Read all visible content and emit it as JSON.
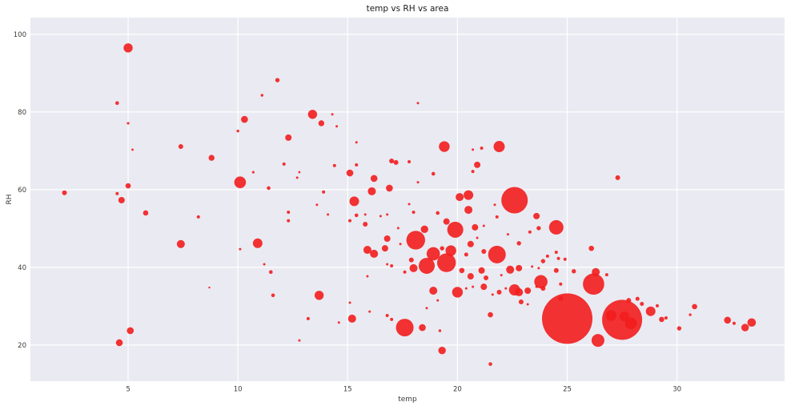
{
  "title": "temp vs RH vs area",
  "colors": {
    "figure_bg": "#ffffff",
    "plot_bg": "#eaeaf2",
    "grid": "#ffffff",
    "marker": "#f21d1d",
    "tick_label": "#3a3a3a",
    "title": "#1a1a1a"
  },
  "chart_data": {
    "type": "scatter",
    "title": "temp vs RH vs area",
    "xlabel": "temp",
    "ylabel": "RH",
    "xlim": [
      0.55,
      34.9
    ],
    "ylim": [
      10.7,
      104.3
    ],
    "x_ticks": [
      5,
      10,
      15,
      20,
      25,
      30
    ],
    "y_ticks": [
      20,
      40,
      60,
      80,
      100
    ],
    "grid": true,
    "legend": false,
    "marker_color": "#f21d1d",
    "marker_opacity": 0.9,
    "size_encodes": "area (burned area, bubble radius in px)",
    "point_format": [
      "temp",
      "RH",
      "radius_px"
    ],
    "points": [
      [
        2.1,
        59.2,
        3
      ],
      [
        4.5,
        82.3,
        2.3
      ],
      [
        4.5,
        59,
        2
      ],
      [
        4.6,
        20.6,
        4.3
      ],
      [
        4.7,
        57.3,
        4
      ],
      [
        5,
        96.5,
        5.7
      ],
      [
        5,
        77.1,
        1.6
      ],
      [
        5,
        61,
        3.3
      ],
      [
        5.1,
        23.7,
        4.3
      ],
      [
        5.2,
        70.3,
        1.4
      ],
      [
        5.8,
        54,
        3.3
      ],
      [
        7.4,
        71.1,
        3
      ],
      [
        7.4,
        46,
        5
      ],
      [
        8.2,
        53,
        2
      ],
      [
        8.7,
        34.8,
        1.2
      ],
      [
        8.8,
        68.2,
        3.7
      ],
      [
        10,
        75.1,
        1.7
      ],
      [
        10.1,
        61.9,
        7.3
      ],
      [
        10.1,
        44.7,
        1.5
      ],
      [
        10.3,
        78.1,
        4.3
      ],
      [
        10.7,
        64.5,
        1.6
      ],
      [
        10.9,
        46.2,
        6
      ],
      [
        11.1,
        84.3,
        1.7
      ],
      [
        11.2,
        40.8,
        1.5
      ],
      [
        11.4,
        60.4,
        2.3
      ],
      [
        11.5,
        38.8,
        2.3
      ],
      [
        11.6,
        32.8,
        2.3
      ],
      [
        11.8,
        88.2,
        2.7
      ],
      [
        12.1,
        66.6,
        2
      ],
      [
        12.3,
        73.4,
        4
      ],
      [
        12.3,
        54.2,
        2
      ],
      [
        12.3,
        52,
        2
      ],
      [
        12.7,
        63.1,
        1.5
      ],
      [
        12.8,
        64.5,
        1.4
      ],
      [
        12.8,
        21.2,
        1.5
      ],
      [
        13.2,
        26.8,
        2
      ],
      [
        13.4,
        79.4,
        5.7
      ],
      [
        13.6,
        56.1,
        1.5
      ],
      [
        13.7,
        32.8,
        5.7
      ],
      [
        13.8,
        77.1,
        3.7
      ],
      [
        13.9,
        59.4,
        2
      ],
      [
        14.1,
        53.6,
        1.5
      ],
      [
        14.3,
        79.4,
        1.5
      ],
      [
        14.4,
        66.2,
        2
      ],
      [
        14.5,
        76.3,
        1.5
      ],
      [
        14.6,
        25.8,
        1.5
      ],
      [
        15.1,
        64.3,
        4.3
      ],
      [
        15.1,
        52,
        2
      ],
      [
        15.1,
        30.9,
        1.5
      ],
      [
        15.2,
        26.8,
        5
      ],
      [
        15.3,
        57,
        6
      ],
      [
        15.4,
        72.2,
        1.5
      ],
      [
        15.4,
        66.4,
        2
      ],
      [
        15.4,
        53.4,
        2.3
      ],
      [
        15.8,
        53.6,
        1.5
      ],
      [
        15.8,
        51.1,
        3
      ],
      [
        15.9,
        44.5,
        5
      ],
      [
        15.9,
        37.7,
        1.5
      ],
      [
        16,
        28.6,
        1.5
      ],
      [
        16.1,
        59.6,
        5
      ],
      [
        16.2,
        62.9,
        4.3
      ],
      [
        16.2,
        43.5,
        5
      ],
      [
        16.5,
        53.2,
        1.5
      ],
      [
        16.7,
        44.9,
        4
      ],
      [
        16.8,
        53.6,
        1.5
      ],
      [
        16.8,
        47.4,
        4
      ],
      [
        16.8,
        40.8,
        1.5
      ],
      [
        16.8,
        27.6,
        2
      ],
      [
        16.9,
        60.4,
        4.3
      ],
      [
        17,
        67.4,
        3
      ],
      [
        17,
        40.4,
        2
      ],
      [
        17,
        26.6,
        2
      ],
      [
        17.2,
        67,
        3
      ],
      [
        17.3,
        50.1,
        1.5
      ],
      [
        17.4,
        46,
        1.5
      ],
      [
        17.6,
        38.8,
        2
      ],
      [
        17.6,
        24.5,
        11
      ],
      [
        17.8,
        67.2,
        2
      ],
      [
        17.8,
        56.3,
        1.5
      ],
      [
        17.9,
        41.9,
        3
      ],
      [
        18,
        54.2,
        2
      ],
      [
        18,
        39.8,
        5
      ],
      [
        18.1,
        47,
        11.7
      ],
      [
        18.2,
        82.3,
        1.5
      ],
      [
        18.2,
        61.9,
        1.5
      ],
      [
        18.4,
        24.5,
        4.3
      ],
      [
        18.5,
        49.8,
        4.7
      ],
      [
        18.6,
        40.4,
        10
      ],
      [
        18.6,
        29.5,
        1.5
      ],
      [
        18.9,
        64.1,
        2.3
      ],
      [
        18.9,
        43.5,
        8.3
      ],
      [
        18.9,
        34,
        5
      ],
      [
        19.1,
        54,
        2.3
      ],
      [
        19.1,
        31.5,
        1.5
      ],
      [
        19.2,
        23.7,
        1.7
      ],
      [
        19.3,
        44.9,
        2.7
      ],
      [
        19.3,
        18.6,
        4.7
      ],
      [
        19.4,
        71.1,
        6.7
      ],
      [
        19.5,
        51.8,
        4
      ],
      [
        19.5,
        41.2,
        11.7
      ],
      [
        19.7,
        44.3,
        6.7
      ],
      [
        19.9,
        49.7,
        10
      ],
      [
        20,
        33.6,
        6.7
      ],
      [
        20.1,
        58.1,
        5
      ],
      [
        20.2,
        39.2,
        3.3
      ],
      [
        20.4,
        43.3,
        2.5
      ],
      [
        20.4,
        34.6,
        1.5
      ],
      [
        20.5,
        58.6,
        6
      ],
      [
        20.5,
        54.8,
        5
      ],
      [
        20.6,
        46,
        4
      ],
      [
        20.6,
        37.7,
        4
      ],
      [
        20.7,
        70.3,
        1.5
      ],
      [
        20.7,
        64.7,
        2
      ],
      [
        20.7,
        35,
        1.5
      ],
      [
        20.8,
        50.3,
        4
      ],
      [
        20.9,
        66.4,
        4
      ],
      [
        20.9,
        47.6,
        1.5
      ],
      [
        21.1,
        70.7,
        2
      ],
      [
        21.1,
        39.2,
        4
      ],
      [
        21.2,
        50.7,
        1.5
      ],
      [
        21.2,
        44.1,
        3
      ],
      [
        21.2,
        35,
        4
      ],
      [
        21.3,
        37.3,
        3
      ],
      [
        21.5,
        27.8,
        3.3
      ],
      [
        21.5,
        15.1,
        2.3
      ],
      [
        21.6,
        33,
        1.5
      ],
      [
        21.7,
        56.1,
        1.5
      ],
      [
        21.8,
        53,
        2
      ],
      [
        21.8,
        43.3,
        11
      ],
      [
        21.9,
        71.1,
        7
      ],
      [
        21.9,
        33.6,
        3
      ],
      [
        22,
        38,
        1.5
      ],
      [
        22.2,
        34.6,
        1.5
      ],
      [
        22.3,
        48.5,
        1.5
      ],
      [
        22.4,
        39.4,
        5
      ],
      [
        22.6,
        57.3,
        16.5
      ],
      [
        22.8,
        46.2,
        2.7
      ],
      [
        22.6,
        34.2,
        7
      ],
      [
        22.8,
        39.8,
        4
      ],
      [
        22.8,
        33.6,
        5
      ],
      [
        22.9,
        31.1,
        3
      ],
      [
        23.2,
        34,
        4
      ],
      [
        23.2,
        30.5,
        1.5
      ],
      [
        23.3,
        49.1,
        2
      ],
      [
        23.4,
        40.2,
        1.5
      ],
      [
        23.6,
        53.2,
        4
      ],
      [
        23.6,
        35,
        1.5
      ],
      [
        23.7,
        50.1,
        2.7
      ],
      [
        23.7,
        39.8,
        1.5
      ],
      [
        23.8,
        36.3,
        8.3
      ],
      [
        23.9,
        41.6,
        2.7
      ],
      [
        23.9,
        34.6,
        3
      ],
      [
        24.1,
        42.9,
        2
      ],
      [
        24.5,
        50.3,
        9
      ],
      [
        24.5,
        43.9,
        2
      ],
      [
        24.5,
        39.2,
        3
      ],
      [
        24.6,
        42.3,
        2
      ],
      [
        24.7,
        35.7,
        2
      ],
      [
        24.7,
        32,
        3
      ],
      [
        24.9,
        42.1,
        2
      ],
      [
        25,
        26.8,
        31.5
      ],
      [
        25.3,
        39,
        2.7
      ],
      [
        26.1,
        44.9,
        3.3
      ],
      [
        26.2,
        35.7,
        13.3
      ],
      [
        26.3,
        38.8,
        5
      ],
      [
        26.4,
        21.2,
        8
      ],
      [
        26.8,
        38.1,
        2
      ],
      [
        27,
        27.6,
        6.7
      ],
      [
        27.3,
        63.1,
        3
      ],
      [
        27.5,
        26.5,
        25
      ],
      [
        27.6,
        27.4,
        6
      ],
      [
        27.9,
        25.6,
        7.3
      ],
      [
        27.8,
        31.5,
        3
      ],
      [
        28.2,
        31.9,
        2.5
      ],
      [
        28.4,
        30.6,
        2.5
      ],
      [
        28.8,
        28.7,
        6
      ],
      [
        29.1,
        30.1,
        2
      ],
      [
        29.3,
        26.6,
        3.3
      ],
      [
        29.5,
        27,
        2
      ],
      [
        30.1,
        24.3,
        2.7
      ],
      [
        30.6,
        27.8,
        1.7
      ],
      [
        30.8,
        29.9,
        3.3
      ],
      [
        32.3,
        26.4,
        4.3
      ],
      [
        32.6,
        25.6,
        2
      ],
      [
        33.1,
        24.5,
        4.7
      ],
      [
        33.4,
        25.8,
        5.3
      ]
    ]
  }
}
